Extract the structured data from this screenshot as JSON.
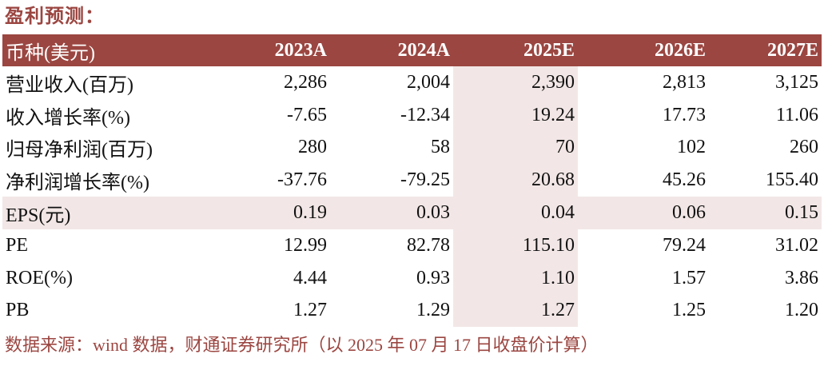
{
  "title": "盈利预测：",
  "table": {
    "headers": [
      "币种(美元)",
      "2023A",
      "2024A",
      "2025E",
      "2026E",
      "2027E"
    ],
    "rows": [
      {
        "label": "营业收入(百万)",
        "values": [
          "2,286",
          "2,004",
          "2,390",
          "2,813",
          "3,125"
        ]
      },
      {
        "label": "收入增长率(%)",
        "values": [
          "-7.65",
          "-12.34",
          "19.24",
          "17.73",
          "11.06"
        ]
      },
      {
        "label": "归母净利润(百万)",
        "values": [
          "280",
          "58",
          "70",
          "102",
          "260"
        ]
      },
      {
        "label": "净利润增长率(%)",
        "values": [
          "-37.76",
          "-79.25",
          "20.68",
          "45.26",
          "155.40"
        ]
      },
      {
        "label": "EPS(元)",
        "values": [
          "0.19",
          "0.03",
          "0.04",
          "0.06",
          "0.15"
        ]
      },
      {
        "label": "PE",
        "values": [
          "12.99",
          "82.78",
          "115.10",
          "79.24",
          "31.02"
        ]
      },
      {
        "label": "ROE(%)",
        "values": [
          "4.44",
          "0.93",
          "1.10",
          "1.57",
          "3.86"
        ]
      },
      {
        "label": "PB",
        "values": [
          "1.27",
          "1.29",
          "1.27",
          "1.25",
          "1.20"
        ]
      }
    ]
  },
  "source": "数据来源：wind 数据，财通证券研究所（以 2025 年 07 月 17 日收盘价计算）",
  "colors": {
    "accent": "#9b4641",
    "highlight": "#f2e7e6"
  }
}
